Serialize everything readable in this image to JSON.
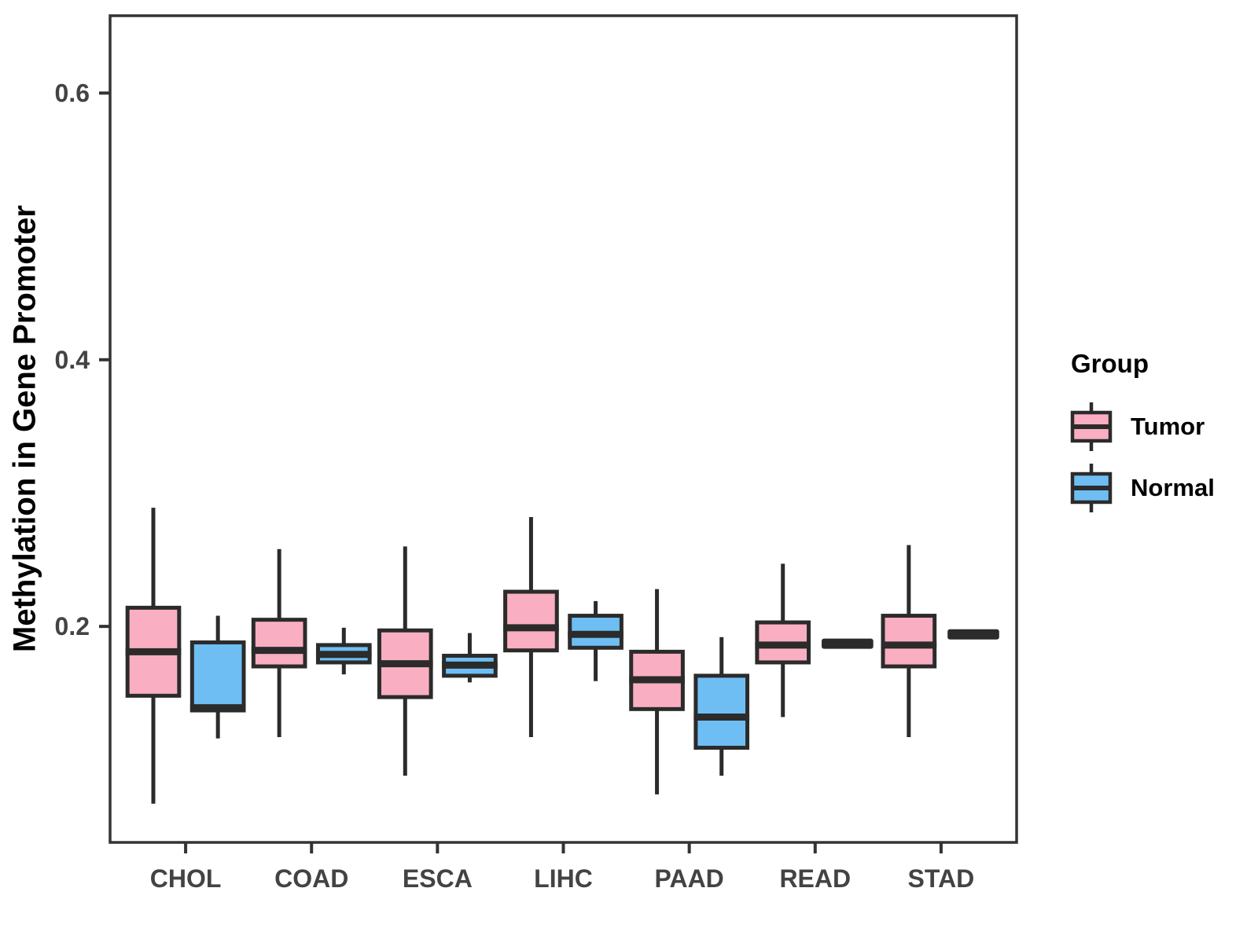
{
  "figure": {
    "background": "#ffffff"
  },
  "chart_data": {
    "type": "boxplot",
    "title": "",
    "xlabel": "",
    "ylabel": "Methylation in Gene Promoter",
    "categories": [
      "CHOL",
      "COAD",
      "ESCA",
      "LIHC",
      "PAAD",
      "READ",
      "STAD"
    ],
    "ylim": [
      0.038,
      0.658
    ],
    "yticks": [
      0.2,
      0.4,
      0.6
    ],
    "ytick_labels": [
      "0.2",
      "0.4",
      "0.6"
    ],
    "grid": "off",
    "legend": {
      "title": "Group",
      "position": "right",
      "entries": [
        "Tumor",
        "Normal"
      ]
    },
    "style_colors": {
      "tumor_fill": "#F9AFC1",
      "normal_fill": "#6EBEF4",
      "stroke": "#2B2B2B",
      "panel_border": "#333333",
      "axis_text": "#434343"
    },
    "series": [
      {
        "name": "Tumor",
        "color": "#F9AFC1",
        "boxes": [
          {
            "category": "CHOL",
            "min": 0.067,
            "q1": 0.148,
            "median": 0.181,
            "q3": 0.214,
            "max": 0.289
          },
          {
            "category": "COAD",
            "min": 0.117,
            "q1": 0.17,
            "median": 0.182,
            "q3": 0.205,
            "max": 0.258
          },
          {
            "category": "ESCA",
            "min": 0.088,
            "q1": 0.147,
            "median": 0.172,
            "q3": 0.197,
            "max": 0.26
          },
          {
            "category": "LIHC",
            "min": 0.117,
            "q1": 0.182,
            "median": 0.199,
            "q3": 0.226,
            "max": 0.282
          },
          {
            "category": "PAAD",
            "min": 0.074,
            "q1": 0.138,
            "median": 0.16,
            "q3": 0.181,
            "max": 0.228
          },
          {
            "category": "READ",
            "min": 0.132,
            "q1": 0.173,
            "median": 0.186,
            "q3": 0.203,
            "max": 0.247
          },
          {
            "category": "STAD",
            "min": 0.117,
            "q1": 0.17,
            "median": 0.186,
            "q3": 0.208,
            "max": 0.261
          }
        ]
      },
      {
        "name": "Normal",
        "color": "#6EBEF4",
        "boxes": [
          {
            "category": "CHOL",
            "min": 0.116,
            "q1": 0.137,
            "median": 0.139,
            "q3": 0.188,
            "max": 0.208
          },
          {
            "category": "COAD",
            "min": 0.164,
            "q1": 0.173,
            "median": 0.179,
            "q3": 0.186,
            "max": 0.199
          },
          {
            "category": "ESCA",
            "min": 0.158,
            "q1": 0.163,
            "median": 0.171,
            "q3": 0.178,
            "max": 0.195
          },
          {
            "category": "LIHC",
            "min": 0.159,
            "q1": 0.184,
            "median": 0.194,
            "q3": 0.208,
            "max": 0.219
          },
          {
            "category": "PAAD",
            "min": 0.088,
            "q1": 0.109,
            "median": 0.132,
            "q3": 0.163,
            "max": 0.192
          },
          {
            "category": "READ",
            "min": 0.187,
            "q1": 0.187,
            "median": 0.187,
            "q3": 0.187,
            "max": 0.187
          },
          {
            "category": "STAD",
            "min": 0.194,
            "q1": 0.194,
            "median": 0.194,
            "q3": 0.194,
            "max": 0.194
          }
        ]
      }
    ]
  }
}
